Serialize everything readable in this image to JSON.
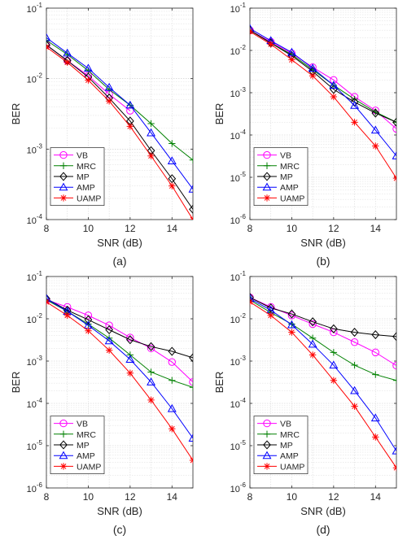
{
  "chart_data": [
    {
      "type": "line",
      "caption": "(a)",
      "xlabel": "SNR (dB)",
      "ylabel": "BER",
      "xlim": [
        8,
        15
      ],
      "ylim": [
        0.0001,
        0.1
      ],
      "yscale": "log",
      "xticks": [
        "8",
        "10",
        "12",
        "14"
      ],
      "yticks": [
        "10-4",
        "10-3",
        "10-2",
        "10-1"
      ],
      "grid": true,
      "legend_position": "bottom-left",
      "x": [
        8,
        9,
        10,
        11,
        12,
        13,
        14,
        15
      ],
      "series": [
        {
          "name": "VB",
          "color": "#ff00ff",
          "marker": "circle",
          "values": [
            0.03,
            0.018,
            0.011,
            0.006,
            0.0035,
            null,
            null,
            null
          ]
        },
        {
          "name": "MRC",
          "color": "#008000",
          "marker": "plus",
          "values": [
            0.035,
            0.022,
            0.013,
            0.007,
            0.0042,
            0.0023,
            0.0012,
            0.0007
          ]
        },
        {
          "name": "MP",
          "color": "#000000",
          "marker": "diamond",
          "values": [
            0.03,
            0.018,
            0.0105,
            0.0053,
            0.0025,
            0.00095,
            0.00038,
            0.00014
          ]
        },
        {
          "name": "AMP",
          "color": "#0000ff",
          "marker": "triangle",
          "values": [
            0.038,
            0.023,
            0.014,
            0.0075,
            0.0042,
            0.0017,
            0.00068,
            0.00027
          ]
        },
        {
          "name": "UAMP",
          "color": "#ff0000",
          "marker": "asterisk",
          "values": [
            0.028,
            0.017,
            0.0095,
            0.0048,
            0.0021,
            0.0008,
            0.0003,
            0.0001
          ]
        }
      ]
    },
    {
      "type": "line",
      "caption": "(b)",
      "xlabel": "SNR (dB)",
      "ylabel": "BER",
      "xlim": [
        8,
        15
      ],
      "ylim": [
        1e-06,
        0.1
      ],
      "yscale": "log",
      "xticks": [
        "8",
        "10",
        "12",
        "14"
      ],
      "yticks": [
        "10-6",
        "10-5",
        "10-4",
        "10-3",
        "10-2",
        "10-1"
      ],
      "grid": true,
      "legend_position": "bottom-left",
      "x": [
        8,
        9,
        10,
        11,
        12,
        13,
        14,
        15
      ],
      "series": [
        {
          "name": "VB",
          "color": "#ff00ff",
          "marker": "circle",
          "values": [
            0.03,
            0.016,
            0.0085,
            0.004,
            0.002,
            0.0008,
            0.00038,
            0.00014
          ]
        },
        {
          "name": "MRC",
          "color": "#008000",
          "marker": "plus",
          "values": [
            0.03,
            0.015,
            0.008,
            0.0035,
            0.0015,
            0.0007,
            0.00035,
            0.0002
          ]
        },
        {
          "name": "MP",
          "color": "#000000",
          "marker": "diamond",
          "values": [
            0.03,
            0.015,
            0.0075,
            0.0032,
            0.0012,
            0.0006,
            0.00033,
            0.0002
          ]
        },
        {
          "name": "AMP",
          "color": "#0000ff",
          "marker": "triangle",
          "values": [
            0.033,
            0.017,
            0.009,
            0.0038,
            0.0015,
            0.0005,
            0.00013,
            3.2e-05
          ]
        },
        {
          "name": "UAMP",
          "color": "#ff0000",
          "marker": "asterisk",
          "values": [
            0.028,
            0.014,
            0.006,
            0.0025,
            0.0008,
            0.0002,
            5.5e-05,
            9.5e-06
          ]
        }
      ]
    },
    {
      "type": "line",
      "caption": "(c)",
      "xlabel": "SNR (dB)",
      "ylabel": "BER",
      "xlim": [
        8,
        15
      ],
      "ylim": [
        1e-06,
        0.1
      ],
      "yscale": "log",
      "xticks": [
        "8",
        "10",
        "12",
        "14"
      ],
      "yticks": [
        "10-6",
        "10-5",
        "10-4",
        "10-3",
        "10-2",
        "10-1"
      ],
      "grid": true,
      "legend_position": "bottom-left",
      "x": [
        8,
        9,
        10,
        11,
        12,
        13,
        14,
        15
      ],
      "series": [
        {
          "name": "VB",
          "color": "#ff00ff",
          "marker": "circle",
          "values": [
            0.028,
            0.019,
            0.012,
            0.007,
            0.0036,
            0.002,
            0.00095,
            0.00032
          ]
        },
        {
          "name": "MRC",
          "color": "#008000",
          "marker": "plus",
          "values": [
            0.028,
            0.015,
            0.0075,
            0.0035,
            0.0014,
            0.00055,
            0.00035,
            0.00024
          ]
        },
        {
          "name": "MP",
          "color": "#000000",
          "marker": "diamond",
          "values": [
            0.03,
            0.016,
            0.0095,
            0.0055,
            0.0032,
            0.0022,
            0.0017,
            0.0012
          ]
        },
        {
          "name": "AMP",
          "color": "#0000ff",
          "marker": "triangle",
          "values": [
            0.03,
            0.015,
            0.007,
            0.003,
            0.0011,
            0.00032,
            7.5e-05,
            1.5e-05
          ]
        },
        {
          "name": "UAMP",
          "color": "#ff0000",
          "marker": "asterisk",
          "values": [
            0.025,
            0.012,
            0.0052,
            0.0018,
            0.00052,
            0.00012,
            2.5e-05,
            4.5e-06
          ]
        }
      ]
    },
    {
      "type": "line",
      "caption": "(d)",
      "xlabel": "SNR (dB)",
      "ylabel": "BER",
      "xlim": [
        8,
        15
      ],
      "ylim": [
        1e-06,
        0.1
      ],
      "yscale": "log",
      "xticks": [
        "8",
        "10",
        "12",
        "14"
      ],
      "yticks": [
        "10-6",
        "10-5",
        "10-4",
        "10-3",
        "10-2",
        "10-1"
      ],
      "grid": true,
      "legend_position": "bottom-left",
      "x": [
        8,
        9,
        10,
        11,
        12,
        13,
        14,
        15
      ],
      "series": [
        {
          "name": "VB",
          "color": "#ff00ff",
          "marker": "circle",
          "values": [
            0.032,
            0.019,
            0.012,
            0.0075,
            0.0048,
            0.0028,
            0.0016,
            0.00078
          ]
        },
        {
          "name": "MRC",
          "color": "#008000",
          "marker": "plus",
          "values": [
            0.028,
            0.014,
            0.0075,
            0.0035,
            0.0016,
            0.0008,
            0.00048,
            0.00035
          ]
        },
        {
          "name": "MP",
          "color": "#000000",
          "marker": "diamond",
          "values": [
            0.032,
            0.018,
            0.013,
            0.0085,
            0.0058,
            0.0048,
            0.0042,
            0.0038
          ]
        },
        {
          "name": "AMP",
          "color": "#0000ff",
          "marker": "triangle",
          "values": [
            0.03,
            0.016,
            0.0072,
            0.0025,
            0.0008,
            0.0002,
            4.5e-05,
            7.5e-06
          ]
        },
        {
          "name": "UAMP",
          "color": "#ff0000",
          "marker": "asterisk",
          "values": [
            0.025,
            0.012,
            0.0048,
            0.0014,
            0.00035,
            8.5e-05,
            1.6e-05,
            3e-06
          ]
        }
      ]
    }
  ]
}
